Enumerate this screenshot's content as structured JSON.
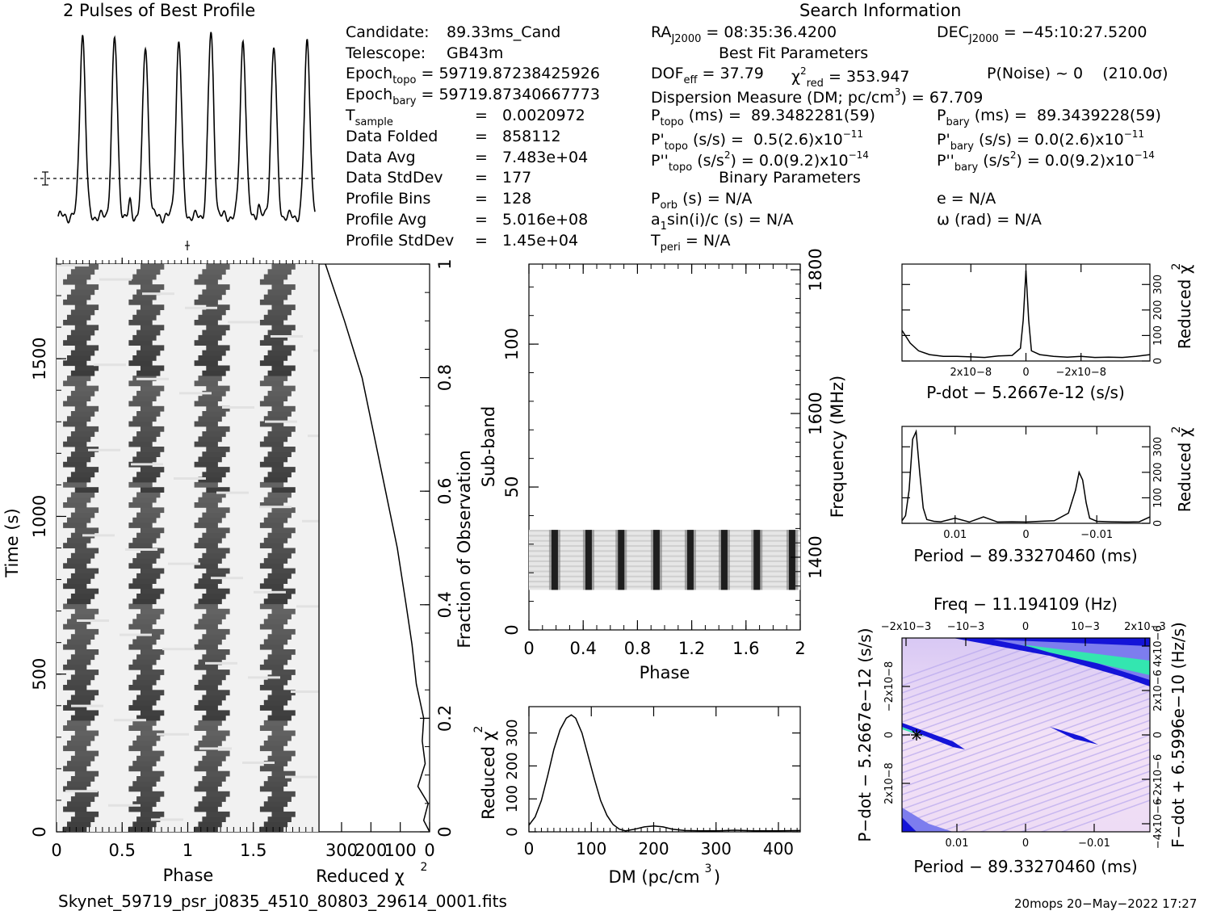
{
  "profile_title": "2 Pulses of Best Profile",
  "search_title": "Search Information",
  "candidate": {
    "label": "Candidate:",
    "value": "89.33ms_Cand"
  },
  "telescope": {
    "label": "Telescope:",
    "value": "GB43m"
  },
  "epoch_topo": {
    "label": "Epoch",
    "sub": "topo",
    "value": "= 59719.87238425926"
  },
  "epoch_bary": {
    "label": "Epoch",
    "sub": "bary",
    "value": "= 59719.87340667773"
  },
  "stats": [
    {
      "label": "T",
      "sub": "sample",
      "value": "0.0020972"
    },
    {
      "label": "Data Folded",
      "sub": "",
      "value": "858112"
    },
    {
      "label": "Data Avg",
      "sub": "",
      "value": "7.483e+04"
    },
    {
      "label": "Data StdDev",
      "sub": "",
      "value": "177"
    },
    {
      "label": "Profile Bins",
      "sub": "",
      "value": "128"
    },
    {
      "label": "Profile Avg",
      "sub": "",
      "value": "5.016e+08"
    },
    {
      "label": "Profile StdDev",
      "sub": "",
      "value": "1.45e+04"
    }
  ],
  "eq": "=",
  "ra": {
    "label": "RA",
    "sub": "J2000",
    "value": "= 08:35:36.4200"
  },
  "dec": {
    "label": "DEC",
    "sub": "J2000",
    "value": "= −45:10:27.5200"
  },
  "best_fit_title": "Best Fit Parameters",
  "dof": {
    "label": "DOF",
    "sub": "eff",
    "value": "= 37.79"
  },
  "chi2": {
    "label": "χ",
    "sup": "2",
    "sub": "red",
    "value": "= 353.947"
  },
  "pnoise": "P(Noise) ~ 0    (210.0σ)",
  "dm_line": {
    "label": "Dispersion Measure (DM; pc/cm",
    "sup": "3",
    "value": ") = 67.709"
  },
  "p_topo": {
    "label": "P",
    "sub": "topo",
    "value": " (ms) =  89.3482281(59)"
  },
  "p_bary": {
    "label": "P",
    "sub": "bary",
    "value": " (ms) =  89.3439228(59)"
  },
  "pd_topo": {
    "label": "P'",
    "sub": "topo",
    "value": " (s/s) =  0.5(2.6)x10",
    "sup": "−11"
  },
  "pd_bary": {
    "label": "P'",
    "sub": "bary",
    "value": " (s/s) = 0.0(2.6)x10",
    "sup": "−11"
  },
  "pdd_topo": {
    "label": "P''",
    "sub": "topo",
    "value": " (s/s",
    "sup1": "2",
    "value2": ") = 0.0(9.2)x10",
    "sup": "−14"
  },
  "pdd_bary": {
    "label": "P''",
    "sub": "bary",
    "value": " (s/s",
    "sup1": "2",
    "value2": ") = 0.0(9.2)x10",
    "sup": "−14"
  },
  "binary_title": "Binary Parameters",
  "porb": {
    "label": "P",
    "sub": "orb",
    "value": " (s) = N/A"
  },
  "a1": {
    "label": "a",
    "sub": "1",
    "value": "sin(i)/c (s) = N/A"
  },
  "tperi": {
    "label": "T",
    "sub": "peri",
    "value": " = N/A"
  },
  "ecc": "e = N/A",
  "omega": "ω (rad) = N/A",
  "filename": "Skynet_59719_psr_j0835_4510_80803_29614_0001.fits",
  "footer_right": "20mops 20−May−2022 17:27",
  "colors": {
    "ink": "#000000",
    "ppdot_low": "#f2e6f4",
    "ppdot_mid": "#7d7dee",
    "ppdot_high": "#1414d8",
    "ppdot_peak": "#33e6b0"
  },
  "chart_data": [
    {
      "type": "line",
      "id": "profile",
      "title": "2 Pulses of Best Profile",
      "x": [
        0,
        0.125,
        0.25,
        0.375,
        0.5,
        0.625,
        0.75,
        0.875,
        1.0,
        1.125,
        1.25,
        1.375,
        1.5,
        1.625,
        1.75,
        1.875
      ],
      "pulse_peaks_phase": [
        0.19,
        0.44,
        0.68,
        0.94,
        1.19,
        1.44,
        1.68,
        1.94
      ],
      "peak_heights": [
        1.0,
        0.97,
        0.93,
        0.96,
        1.0,
        0.97,
        0.93,
        0.96
      ],
      "minor_peaks_phase": [
        0.56,
        1.56
      ],
      "baseline": 0.0,
      "xlim": [
        0,
        2
      ]
    },
    {
      "type": "heatmap",
      "id": "time-phase",
      "xlabel": "Phase",
      "ylabel": "Time (s)",
      "xlim": [
        0,
        2
      ],
      "ylim": [
        0,
        1800
      ],
      "xticks": [
        "0",
        "0.5",
        "1",
        "1.5"
      ],
      "yticks": [
        "0",
        "500",
        "1000",
        "1500"
      ],
      "rows": 28,
      "drift_phase_per_row": 0.12,
      "pulse_phase_start": [
        0.05,
        0.55,
        1.05,
        1.55
      ]
    },
    {
      "type": "line",
      "id": "time-chi2",
      "xlabel": "Reduced χ2",
      "ylabel": "Fraction of Observation",
      "xlim": [
        350,
        0
      ],
      "ylim": [
        0,
        1
      ],
      "xticks": [
        "300",
        "200",
        "100",
        "0"
      ],
      "yticks": [
        "0",
        "0.2",
        "0.4",
        "0.6",
        "0.8",
        "1"
      ],
      "fraction": [
        0,
        0.02,
        0.05,
        0.08,
        0.12,
        0.16,
        0.2,
        0.26,
        0.33,
        0.4,
        0.5,
        0.6,
        0.7,
        0.8,
        0.9,
        1.0
      ],
      "chi2": [
        0,
        20,
        5,
        40,
        15,
        25,
        20,
        45,
        60,
        80,
        110,
        150,
        190,
        230,
        290,
        355
      ]
    },
    {
      "type": "heatmap",
      "id": "subband-phase",
      "xlabel": "Phase",
      "ylabel": "Sub-band",
      "y2label": "Frequency (MHz)",
      "xlim": [
        0,
        2
      ],
      "ylim": [
        0,
        128
      ],
      "xticks": [
        "0",
        "0.4",
        "0.8",
        "1.2",
        "1.6",
        "2"
      ],
      "yticks": [
        "0",
        "50",
        "100"
      ],
      "y2ticks": [
        "1400",
        "1600",
        "1800"
      ],
      "filled_subbands": [
        14,
        35
      ],
      "pulse_phase": [
        0.19,
        0.44,
        0.68,
        0.94,
        1.19,
        1.44,
        1.68,
        1.94
      ]
    },
    {
      "type": "line",
      "id": "dm-curve",
      "xlabel": "DM (pc/cm3)",
      "ylabel": "Reduced χ2",
      "xlim": [
        0,
        435
      ],
      "ylim": [
        0,
        380
      ],
      "xticks": [
        "0",
        "100",
        "200",
        "300",
        "400"
      ],
      "yticks": [
        "0",
        "100",
        "200",
        "300"
      ],
      "x": [
        0,
        10,
        20,
        30,
        40,
        50,
        60,
        68,
        75,
        85,
        95,
        105,
        115,
        125,
        135,
        145,
        155,
        170,
        185,
        200,
        215,
        230,
        250,
        275,
        300,
        330,
        360,
        400,
        435
      ],
      "y": [
        20,
        45,
        95,
        170,
        250,
        310,
        345,
        355,
        345,
        300,
        230,
        160,
        95,
        50,
        22,
        8,
        3,
        8,
        15,
        18,
        15,
        8,
        4,
        3,
        3,
        5,
        3,
        3,
        4
      ]
    },
    {
      "type": "line",
      "id": "pdot-curve",
      "xlabel": "P-dot − 5.2667e-12 (s/s)",
      "ylabel": "Reduced χ2",
      "xlim": [
        4.5e-08,
        -4.5e-08
      ],
      "ylim": [
        0,
        380
      ],
      "xticks": [
        "2x10−8",
        "0",
        "−2x10−8"
      ],
      "yticks": [
        "0",
        "100",
        "200",
        "300"
      ],
      "x": [
        4.5e-08,
        4.2e-08,
        3.9e-08,
        3.5e-08,
        3e-08,
        2.5e-08,
        2e-08,
        1.5e-08,
        1e-08,
        5e-09,
        2e-09,
        1e-09,
        0,
        -1e-09,
        -2e-09,
        -5e-09,
        -1e-08,
        -1.5e-08,
        -2e-08,
        -2.5e-08,
        -3e-08,
        -3.5e-08,
        -4e-08,
        -4.5e-08
      ],
      "y": [
        120,
        70,
        40,
        25,
        18,
        18,
        16,
        14,
        20,
        22,
        50,
        160,
        355,
        160,
        40,
        25,
        18,
        15,
        18,
        14,
        15,
        14,
        18,
        25
      ]
    },
    {
      "type": "line",
      "id": "period-curve",
      "xlabel": "Period − 89.33270460 (ms)",
      "ylabel": "Reduced χ2",
      "xlim": [
        0.0175,
        -0.0175
      ],
      "ylim": [
        0,
        380
      ],
      "xticks": [
        "0.01",
        "0",
        "−0.01"
      ],
      "yticks": [
        "0",
        "100",
        "200",
        "300"
      ],
      "x": [
        0.0175,
        0.017,
        0.0165,
        0.016,
        0.0155,
        0.015,
        0.0145,
        0.014,
        0.013,
        0.012,
        0.01,
        0.008,
        0.006,
        0.004,
        0.002,
        0,
        -0.002,
        -0.004,
        -0.006,
        -0.007,
        -0.0075,
        -0.008,
        -0.0085,
        -0.009,
        -0.01,
        -0.012,
        -0.014,
        -0.016,
        -0.0175
      ],
      "y": [
        10,
        30,
        130,
        330,
        360,
        200,
        60,
        15,
        8,
        6,
        20,
        5,
        25,
        5,
        6,
        5,
        8,
        10,
        40,
        130,
        200,
        170,
        80,
        20,
        8,
        6,
        5,
        6,
        25
      ]
    },
    {
      "type": "heatmap",
      "id": "p-pdot",
      "title": "Freq − 11.194109 (Hz)",
      "xlabel": "Period − 89.33270460 (ms)",
      "ylabel": "P−dot − 5.2667e−12 (s/s)",
      "y2label": "F−dot + 6.5996e−10 (Hz/s)",
      "xticks": [
        "0.01",
        "0",
        "−0.01"
      ],
      "x2ticks": [
        "−2x10−3",
        "−10−3",
        "0",
        "10−3",
        "2x10−3"
      ],
      "yticks": [
        "2x10−8",
        "0",
        "−2x10−8"
      ],
      "y2ticks": [
        "−4x10−6",
        "−2x10−6",
        "0",
        "2x10−6",
        "4x10−6"
      ],
      "best_point": {
        "period": 0.0155,
        "pdot": 0
      }
    }
  ]
}
